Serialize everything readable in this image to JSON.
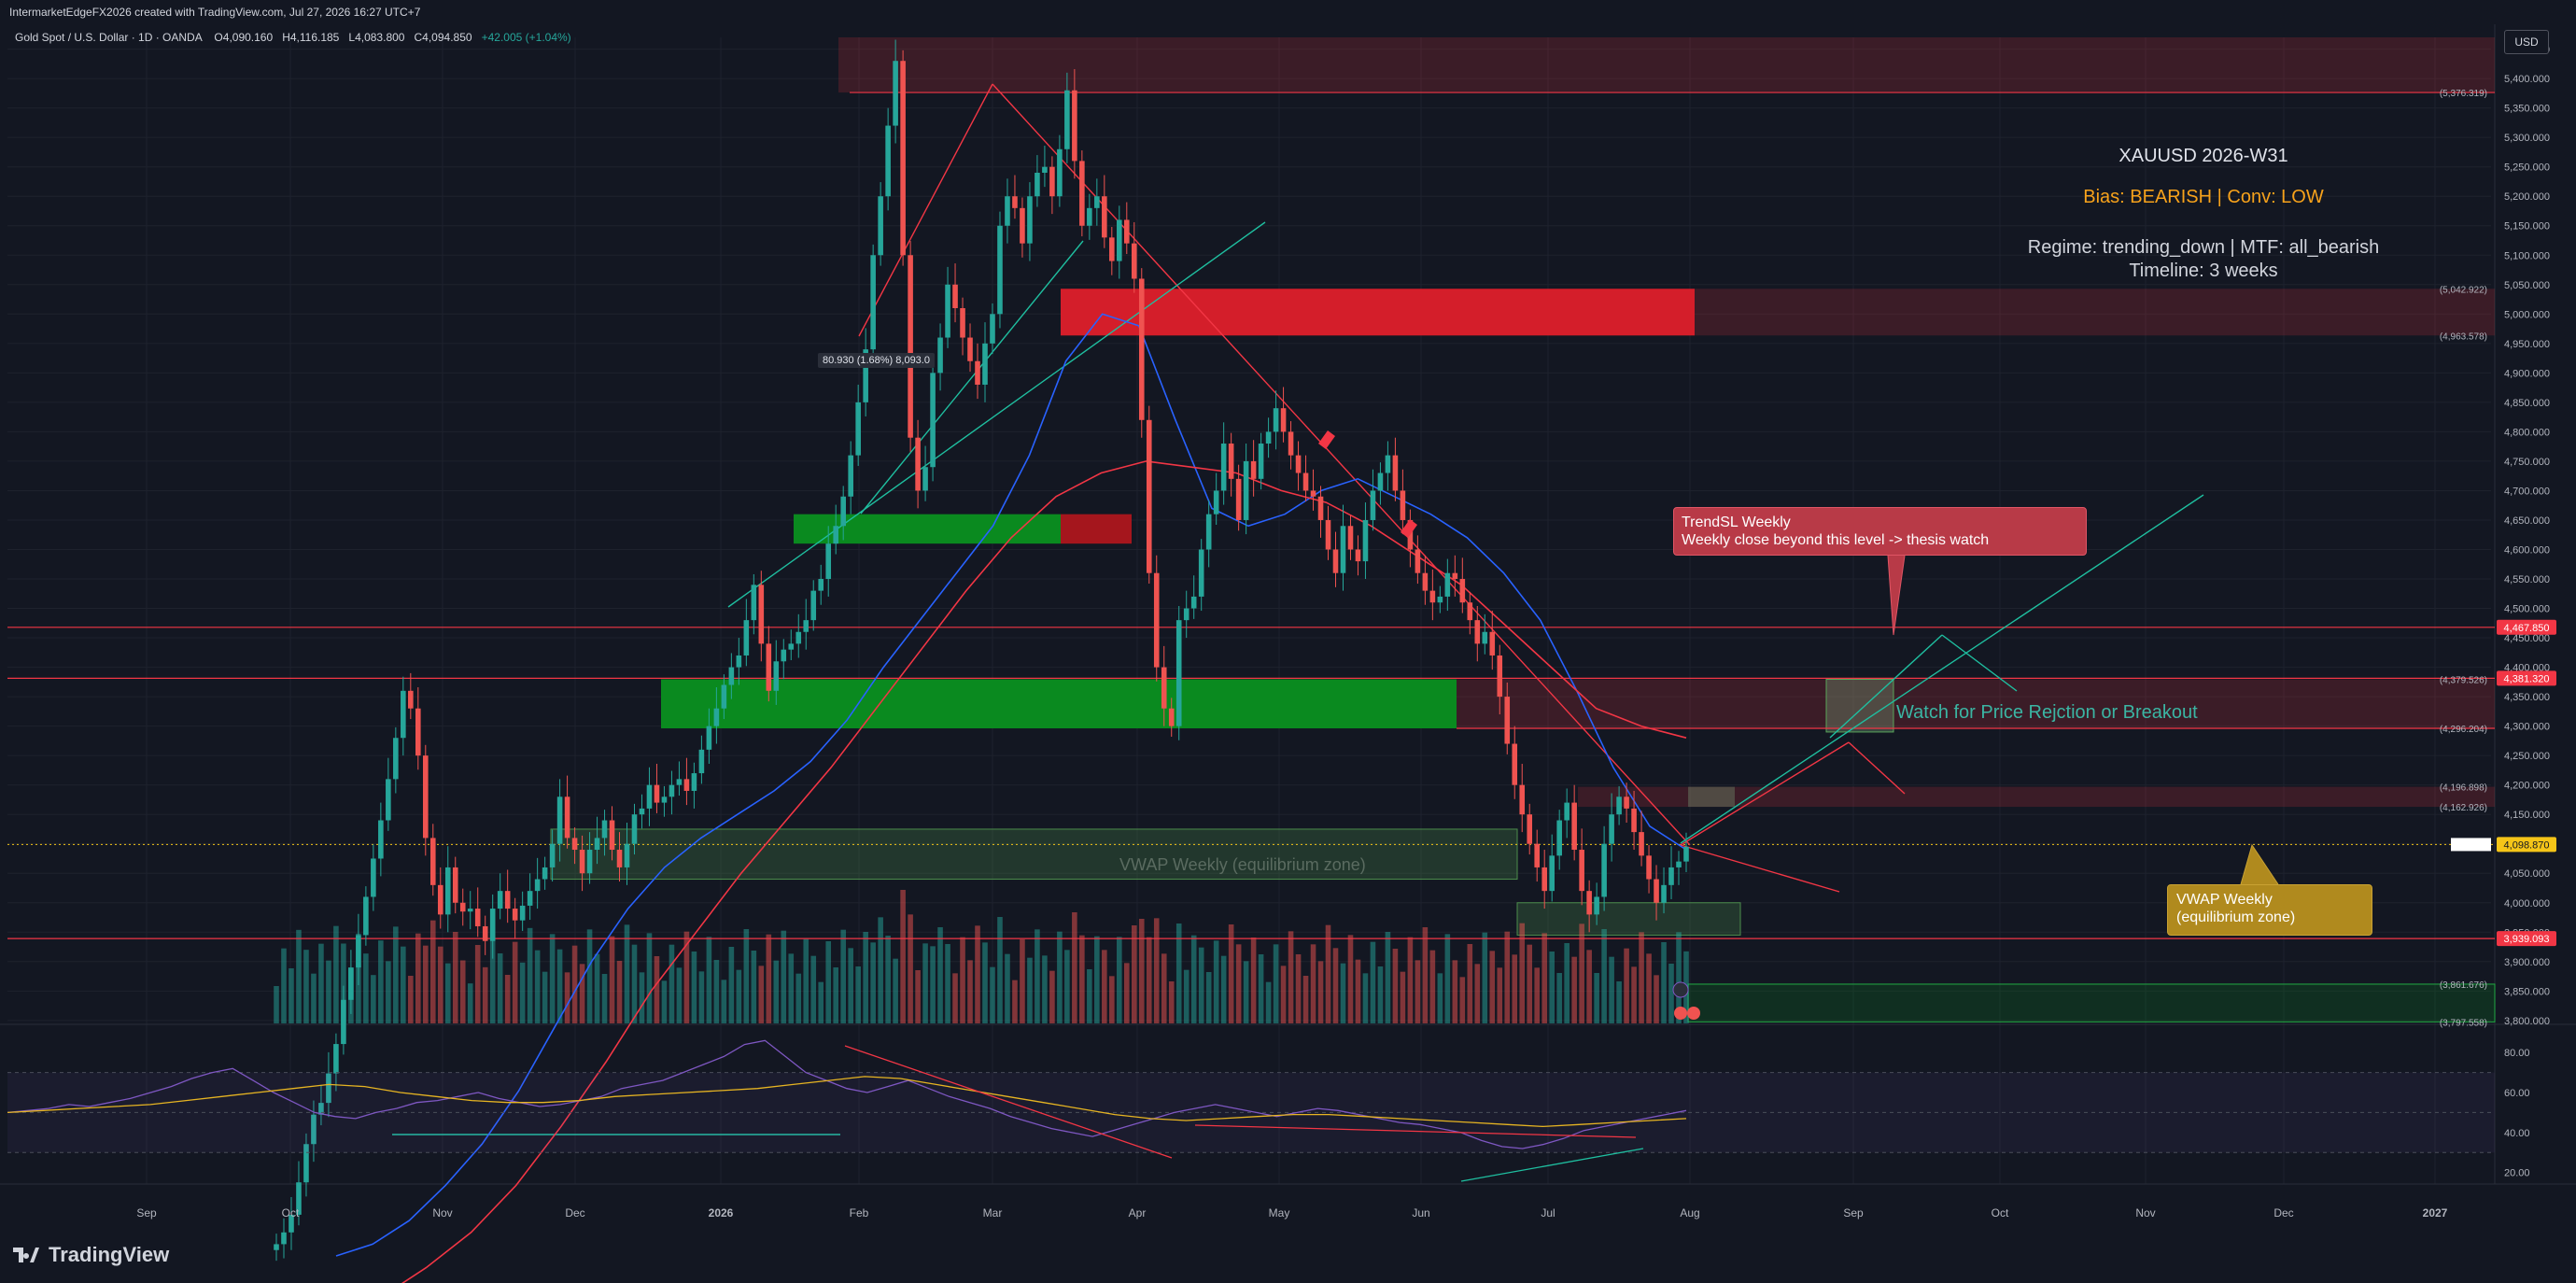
{
  "header": {
    "credit": "IntermarketEdgeFX2026 created with TradingView.com, Jul 27, 2026 16:27 UTC+7",
    "symbol": "Gold Spot / U.S. Dollar · 1D · OANDA",
    "o_label": "O",
    "o_value": "4,090.160",
    "h_label": "H",
    "h_value": "4,116.185",
    "l_label": "L",
    "l_value": "4,083.800",
    "c_label": "C",
    "c_value": "4,094.850",
    "change": "+42.005 (+1.04%)",
    "currency": "USD"
  },
  "brand": "TradingView",
  "info_box": {
    "title": "XAUUSD 2026-W31",
    "bias": "Bias: BEARISH | Conv: LOW",
    "regime": "Regime: trending_down | MTF: all_bearish",
    "timeline": "Timeline: 3 weeks"
  },
  "notes": {
    "trend_sl_title": "TrendSL Weekly",
    "trend_sl_body": "Weekly close beyond this level -> thesis watch",
    "vwap_title": "VWAP Weekly",
    "vwap_body": "(equilibrium zone)",
    "watch": "Watch for Price Rejction or Breakout",
    "vwap_zone": "VWAP Weekly (equilibrium zone)",
    "measure": "80.930 (1.68%) 8,093.0"
  },
  "colors": {
    "background": "#131722",
    "bull": "#26a69a",
    "bear": "#ef5350",
    "level_line": "#f23645",
    "green_zone": "#0a8a1f",
    "red_zone": "#d41e2a",
    "ema_fast": "#2962ff",
    "ema_slow": "#f23645",
    "rsi": "#7e57c2",
    "rsi_ma": "#e6b422"
  },
  "chart_data": {
    "type": "candlestick",
    "title": "Gold Spot / U.S. Dollar",
    "timeframe": "1D",
    "x_axis_labels": [
      "Sep",
      "Oct",
      "Nov",
      "Dec",
      "2026",
      "Feb",
      "Mar",
      "Apr",
      "May",
      "Jun",
      "Jul",
      "Aug",
      "Sep",
      "Oct",
      "Nov",
      "Dec",
      "2027"
    ],
    "y_axis_labels": [
      "5,450.000",
      "5,400.000",
      "5,350.000",
      "5,300.000",
      "5,250.000",
      "5,200.000",
      "5,150.000",
      "5,100.000",
      "5,050.000",
      "5,000.000",
      "4,950.000",
      "4,900.000",
      "4,850.000",
      "4,800.000",
      "4,750.000",
      "4,700.000",
      "4,650.000",
      "4,600.000",
      "4,550.000",
      "4,500.000",
      "4,450.000",
      "4,400.000",
      "4,350.000",
      "4,300.000",
      "4,250.000",
      "4,200.000",
      "4,150.000",
      "4,100.000",
      "4,050.000",
      "4,000.000",
      "3,950.000",
      "3,900.000",
      "3,850.000",
      "3,800.000"
    ],
    "ylim": [
      3795,
      5470
    ],
    "level_labels": [
      {
        "text": "(5,376.319)",
        "value": 5376.319
      },
      {
        "text": "(5,042.922)",
        "value": 5042.922
      },
      {
        "text": "(4,963.578)",
        "value": 4963.578
      },
      {
        "text": "(4,379.526)",
        "value": 4379.526
      },
      {
        "text": "(4,296.204)",
        "value": 4296.204
      },
      {
        "text": "(4,196.898)",
        "value": 4196.898
      },
      {
        "text": "(4,162.926)",
        "value": 4162.926
      },
      {
        "text": "(3,861.676)",
        "value": 3861.676
      },
      {
        "text": "(3,797.558)",
        "value": 3797.558
      }
    ],
    "price_tags": [
      {
        "text": "4,467.850",
        "value": 4467.85,
        "color": "#f23645"
      },
      {
        "text": "4,381.320",
        "value": 4381.32,
        "color": "#f23645"
      },
      {
        "text": "4,098.870",
        "value": 4098.87,
        "color": "#f5c518"
      },
      {
        "text": "3,939.093",
        "value": 3939.093,
        "color": "#f23645"
      }
    ],
    "ohlc_closes": [
      3420,
      3440,
      3470,
      3525,
      3590,
      3640,
      3660,
      3710,
      3760,
      3835,
      3890,
      3945,
      4010,
      4075,
      4140,
      4210,
      4280,
      4360,
      4330,
      4250,
      4110,
      4030,
      3980,
      4060,
      4000,
      3985,
      3990,
      3960,
      3935,
      3990,
      4020,
      3990,
      3970,
      3995,
      4020,
      4040,
      4060,
      4100,
      4180,
      4110,
      4090,
      4050,
      4090,
      4110,
      4140,
      4090,
      4060,
      4100,
      4150,
      4160,
      4200,
      4170,
      4180,
      4200,
      4210,
      4190,
      4220,
      4260,
      4300,
      4330,
      4370,
      4400,
      4420,
      4480,
      4540,
      4440,
      4360,
      4410,
      4430,
      4440,
      4460,
      4480,
      4530,
      4550,
      4610,
      4640,
      4690,
      4760,
      4850,
      4940,
      5100,
      5200,
      5320,
      5430,
      5100,
      4790,
      4700,
      4740,
      4900,
      4960,
      5050,
      5010,
      4960,
      4920,
      4880,
      4950,
      5000,
      5150,
      5200,
      5180,
      5120,
      5200,
      5240,
      5250,
      5200,
      5280,
      5380,
      5260,
      5150,
      5180,
      5200,
      5130,
      5090,
      5160,
      5120,
      5060,
      4820,
      4560,
      4400,
      4330,
      4300,
      4480,
      4500,
      4520,
      4600,
      4660,
      4700,
      4780,
      4720,
      4650,
      4750,
      4720,
      4780,
      4800,
      4840,
      4800,
      4760,
      4730,
      4700,
      4690,
      4650,
      4600,
      4560,
      4640,
      4600,
      4580,
      4650,
      4700,
      4730,
      4760,
      4700,
      4650,
      4600,
      4560,
      4530,
      4510,
      4520,
      4560,
      4550,
      4510,
      4480,
      4440,
      4460,
      4420,
      4350,
      4270,
      4200,
      4150,
      4100,
      4060,
      4020,
      4080,
      4140,
      4170,
      4090,
      4020,
      3980,
      4010,
      4100,
      4150,
      4180,
      4160,
      4120,
      4080,
      4040,
      4000,
      4030,
      4060,
      4070,
      4095
    ],
    "ema_fast_values": [
      3400,
      3420,
      3460,
      3520,
      3590,
      3680,
      3790,
      3900,
      3990,
      4060,
      4110,
      4150,
      4190,
      4240,
      4310,
      4400,
      4480,
      4560,
      4640,
      4760,
      4920,
      5000,
      4980,
      4820,
      4670,
      4640,
      4660,
      4700,
      4720,
      4690,
      4660,
      4620,
      4560,
      4480,
      4360,
      4230,
      4130,
      4090
    ],
    "ema_slow_values": [
      3300,
      3330,
      3380,
      3440,
      3520,
      3620,
      3730,
      3850,
      3950,
      4050,
      4140,
      4230,
      4330,
      4430,
      4530,
      4620,
      4690,
      4730,
      4750,
      4740,
      4730,
      4700,
      4680,
      4640,
      4590,
      4540,
      4470,
      4400,
      4330,
      4300,
      4280
    ],
    "rsi_axis_labels": [
      "80.00",
      "60.00",
      "40.00",
      "20.00"
    ],
    "rsi_ylim": [
      18,
      88
    ],
    "rsi_values": [
      50,
      51,
      52,
      54,
      53,
      55,
      57,
      60,
      63,
      67,
      70,
      72,
      66,
      60,
      55,
      50,
      48,
      47,
      50,
      52,
      55,
      56,
      58,
      60,
      57,
      55,
      53,
      54,
      56,
      58,
      62,
      64,
      66,
      70,
      74,
      78,
      84,
      86,
      78,
      70,
      66,
      62,
      60,
      63,
      66,
      62,
      58,
      55,
      52,
      48,
      45,
      42,
      40,
      38,
      41,
      44,
      47,
      50,
      52,
      54,
      52,
      50,
      48,
      50,
      52,
      51,
      49,
      47,
      45,
      44,
      42,
      40,
      36,
      33,
      32,
      34,
      37,
      41,
      43,
      45,
      47,
      49,
      51
    ],
    "rsi_ma_values": [
      50,
      51,
      52,
      53,
      54,
      56,
      58,
      60,
      62,
      64,
      63,
      60,
      58,
      56,
      55,
      55,
      56,
      58,
      59,
      60,
      61,
      62,
      64,
      66,
      68,
      67,
      64,
      61,
      58,
      55,
      52,
      49,
      47,
      46,
      47,
      48,
      49,
      49,
      48,
      47,
      46,
      45,
      44,
      43,
      44,
      45,
      46,
      47
    ],
    "volume_scale_note": "relative"
  }
}
